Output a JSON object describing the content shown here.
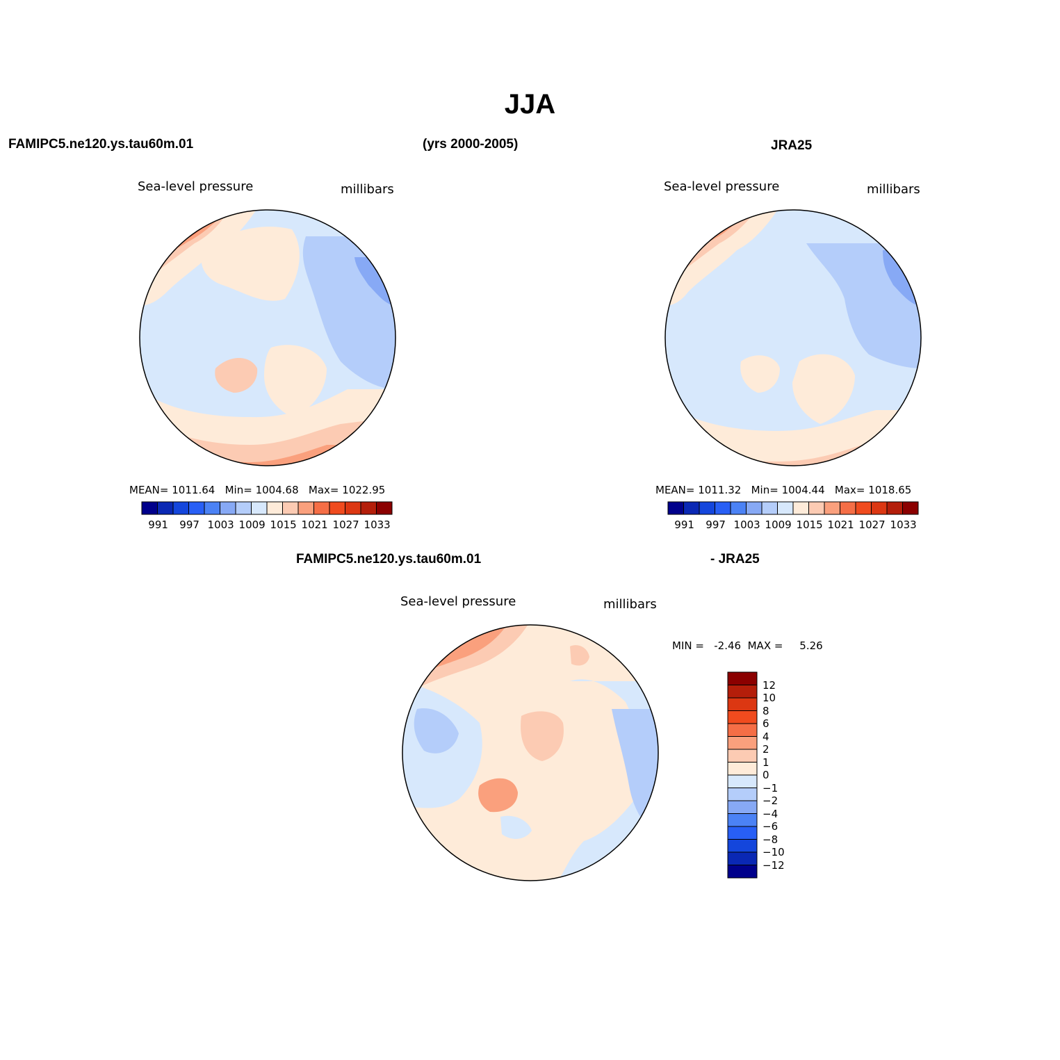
{
  "figure": {
    "title": "JJA",
    "model_label": "FAMIPC5.ne120.ys.tau60m.01",
    "years_label": "(yrs 2000-2005)",
    "obs_label": "JRA25",
    "diff_model_label": "FAMIPC5.ne120.ys.tau60m.01",
    "diff_obs_label": "- JRA25"
  },
  "colors": {
    "scale": [
      "#00008b",
      "#0a28b4",
      "#1446dc",
      "#285ff5",
      "#4b82f5",
      "#87a9f5",
      "#b4cdfa",
      "#d7e8fc",
      "#feebd9",
      "#fccbb3",
      "#faa07d",
      "#f56e46",
      "#f04b1e",
      "#dc3712",
      "#b41e0a",
      "#8b0000"
    ],
    "diff_scale": [
      "#00008b",
      "#0a28b4",
      "#1446dc",
      "#285ff5",
      "#4b82f5",
      "#87a9f5",
      "#b4cdfa",
      "#d7e8fc",
      "#feebd9",
      "#fccbb3",
      "#faa07d",
      "#f56e46",
      "#f04b1e",
      "#dc3712",
      "#b41e0a",
      "#8b0000"
    ],
    "coastline": "#000000"
  },
  "panels": {
    "model": {
      "variable": "Sea-level pressure",
      "units": "millibars",
      "mean_label": "MEAN=",
      "mean": "1011.64",
      "min_label": "Min=",
      "min": "1004.68",
      "max_label": "Max=",
      "max": "1022.95",
      "colorbar_ticks": [
        "991",
        "997",
        "1003",
        "1009",
        "1015",
        "1021",
        "1027",
        "1033"
      ]
    },
    "obs": {
      "variable": "Sea-level pressure",
      "units": "millibars",
      "mean_label": "MEAN=",
      "mean": "1011.32",
      "min_label": "Min=",
      "min": "1004.44",
      "max_label": "Max=",
      "max": "1018.65",
      "colorbar_ticks": [
        "991",
        "997",
        "1003",
        "1009",
        "1015",
        "1021",
        "1027",
        "1033"
      ]
    },
    "diff": {
      "variable": "Sea-level pressure",
      "units": "millibars",
      "min_label": "MIN =",
      "min": "-2.46",
      "max_label": "MAX =",
      "max": "5.26",
      "colorbar_ticks": [
        "12",
        "10",
        "8",
        "6",
        "4",
        "2",
        "1",
        "0",
        "-1",
        "-2",
        "-4",
        "-6",
        "-8",
        "-10",
        "-12"
      ]
    }
  }
}
